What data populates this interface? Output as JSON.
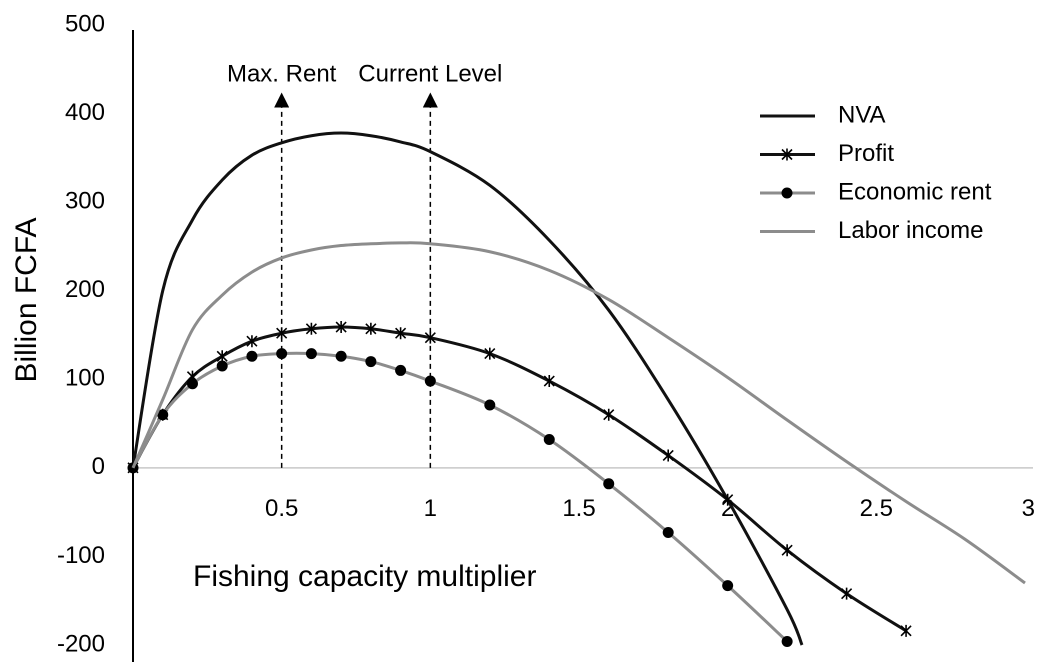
{
  "chart_data": {
    "type": "line",
    "y_label": "Billion FCFA",
    "x_label": "Fishing capacity multiplier",
    "xlim": [
      0,
      3
    ],
    "ylim": [
      -200,
      500
    ],
    "xticks": [
      0.5,
      1,
      1.5,
      2,
      2.5,
      3
    ],
    "yticks": [
      -200,
      -100,
      0,
      100,
      200,
      300,
      400,
      500
    ],
    "grid": false,
    "legend": "upper right",
    "annotations": [
      {
        "text": "Max. Rent",
        "x": 0.5
      },
      {
        "text": "Current Level",
        "x": 1
      }
    ],
    "series": [
      {
        "name": "NVA",
        "color": "#111111",
        "marker": "none",
        "x": [
          0,
          0.1,
          0.2,
          0.3,
          0.4,
          0.5,
          0.6,
          0.7,
          0.8,
          0.9,
          1.0,
          1.2,
          1.4,
          1.6,
          1.8,
          2.0,
          2.2,
          2.25
        ],
        "values": [
          0,
          200,
          280,
          325,
          353,
          367,
          375,
          378,
          375,
          368,
          357,
          319,
          257,
          178,
          77,
          -36,
          -160,
          -200
        ]
      },
      {
        "name": "Profit",
        "color": "#111111",
        "marker": "x",
        "x": [
          0,
          0.1,
          0.2,
          0.3,
          0.4,
          0.5,
          0.6,
          0.7,
          0.8,
          0.9,
          1.0,
          1.2,
          1.4,
          1.6,
          1.8,
          2.0,
          2.2,
          2.4,
          2.6
        ],
        "values": [
          0,
          60,
          103,
          126,
          143,
          152,
          157,
          159,
          157,
          152,
          147,
          129,
          98,
          60,
          14,
          -36,
          -93,
          -142,
          -184
        ]
      },
      {
        "name": "Economic rent",
        "color": "#8c8c8c",
        "marker": "circle",
        "x": [
          0,
          0.1,
          0.2,
          0.3,
          0.4,
          0.5,
          0.6,
          0.7,
          0.8,
          0.9,
          1.0,
          1.2,
          1.4,
          1.6,
          1.8,
          2.0,
          2.2
        ],
        "values": [
          0,
          60,
          95,
          115,
          126,
          129,
          129,
          126,
          120,
          110,
          98,
          71,
          32,
          -18,
          -73,
          -133,
          -196
        ]
      },
      {
        "name": "Labor income",
        "color": "#8c8c8c",
        "marker": "none",
        "x": [
          0,
          0.1,
          0.2,
          0.3,
          0.4,
          0.5,
          0.6,
          0.7,
          0.8,
          0.9,
          1.0,
          1.2,
          1.4,
          1.6,
          1.8,
          2.0,
          2.2,
          2.4,
          2.6,
          2.8,
          3.0
        ],
        "values": [
          0,
          77,
          156,
          195,
          221,
          237,
          246,
          251,
          253,
          254,
          253,
          244,
          223,
          190,
          147,
          102,
          54,
          7,
          -38,
          -81,
          -130
        ]
      }
    ]
  }
}
